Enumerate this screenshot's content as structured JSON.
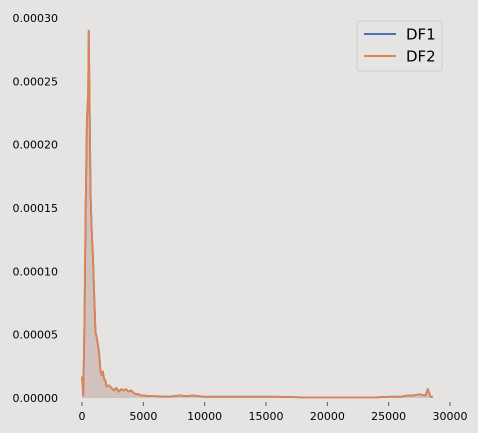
{
  "chart_data": {
    "type": "area",
    "title": "",
    "xlabel": "",
    "ylabel": "",
    "xlim": [
      -1200,
      30000
    ],
    "ylim": [
      0,
      0.0003
    ],
    "xticks": [
      0,
      5000,
      10000,
      15000,
      20000,
      25000,
      30000
    ],
    "xtick_labels": [
      "0",
      "5000",
      "10000",
      "15000",
      "20000",
      "25000",
      "30000"
    ],
    "yticks": [
      0,
      5e-05,
      0.0001,
      0.00015,
      0.0002,
      0.00025,
      0.0003
    ],
    "ytick_labels": [
      "0.00000",
      "0.00005",
      "0.00010",
      "0.00015",
      "0.00020",
      "0.00025",
      "0.00030"
    ],
    "grid": false,
    "legend_position": "top-right",
    "colors": {
      "background": "#e6e4e2",
      "fill": "#c8b4b0",
      "DF1": "#4c72b0",
      "DF2": "#dd8452"
    },
    "series": [
      {
        "name": "DF1",
        "x": [
          0,
          100,
          200,
          300,
          400,
          500,
          550,
          600,
          700,
          800,
          900,
          1000,
          1100,
          1200,
          1300,
          1400,
          1500,
          1600,
          1700,
          1800,
          1900,
          2000,
          2200,
          2400,
          2600,
          2800,
          3000,
          3200,
          3400,
          3600,
          3800,
          4000,
          4200,
          4400,
          4600,
          4800,
          5000,
          5500,
          6000,
          7000,
          8000,
          8500,
          9000,
          10000,
          12000,
          14000,
          16000,
          18000,
          20000,
          22000,
          24000,
          25000,
          26000,
          26500,
          27000,
          27500,
          28000,
          28200,
          28400,
          28600
        ],
        "y": [
          1.7e-05,
          2e-06,
          6e-05,
          0.00015,
          0.00022,
          0.00024,
          0.00029,
          0.00025,
          0.00016,
          0.00013,
          0.00011,
          8e-05,
          5.2e-05,
          4.8e-05,
          4.2e-05,
          3.5e-05,
          2.2e-05,
          1.8e-05,
          2.1e-05,
          1.5e-05,
          1.4e-05,
          9e-06,
          1e-05,
          8e-06,
          6e-06,
          8e-06,
          5e-06,
          7e-06,
          6e-06,
          7e-06,
          5e-06,
          6e-06,
          4e-06,
          3e-06,
          3e-06,
          2e-06,
          2e-06,
          1.5e-06,
          1.5e-06,
          1e-06,
          2e-06,
          1.5e-06,
          2e-06,
          1e-06,
          1e-06,
          1e-06,
          1e-06,
          5e-07,
          5e-07,
          5e-07,
          5e-07,
          1e-06,
          1e-06,
          2e-06,
          2e-06,
          3e-06,
          2e-06,
          7e-06,
          1e-06,
          1e-06
        ]
      },
      {
        "name": "DF2",
        "x": [
          0,
          100,
          200,
          300,
          400,
          500,
          550,
          600,
          700,
          800,
          900,
          1000,
          1100,
          1200,
          1300,
          1400,
          1500,
          1600,
          1700,
          1800,
          1900,
          2000,
          2200,
          2400,
          2600,
          2800,
          3000,
          3200,
          3400,
          3600,
          3800,
          4000,
          4200,
          4400,
          4600,
          4800,
          5000,
          5500,
          6000,
          7000,
          8000,
          8500,
          9000,
          10000,
          12000,
          14000,
          16000,
          18000,
          20000,
          22000,
          24000,
          25000,
          26000,
          26500,
          27000,
          27500,
          28000,
          28200,
          28400,
          28600
        ],
        "y": [
          1.7e-05,
          2e-06,
          6e-05,
          0.00015,
          0.00022,
          0.00024,
          0.00029,
          0.00025,
          0.00016,
          0.00013,
          0.00011,
          8e-05,
          5.2e-05,
          4.8e-05,
          4.2e-05,
          3.5e-05,
          2.2e-05,
          1.8e-05,
          2.1e-05,
          1.5e-05,
          1.4e-05,
          9e-06,
          1e-05,
          8e-06,
          6e-06,
          8e-06,
          5e-06,
          7e-06,
          6e-06,
          7e-06,
          5e-06,
          6e-06,
          4e-06,
          3e-06,
          3e-06,
          2e-06,
          2e-06,
          1.5e-06,
          1.5e-06,
          1e-06,
          2e-06,
          1.5e-06,
          2e-06,
          1e-06,
          1e-06,
          1e-06,
          1e-06,
          5e-07,
          5e-07,
          5e-07,
          5e-07,
          1e-06,
          1e-06,
          2e-06,
          2e-06,
          3e-06,
          2e-06,
          7e-06,
          1e-06,
          1e-06
        ]
      }
    ]
  }
}
